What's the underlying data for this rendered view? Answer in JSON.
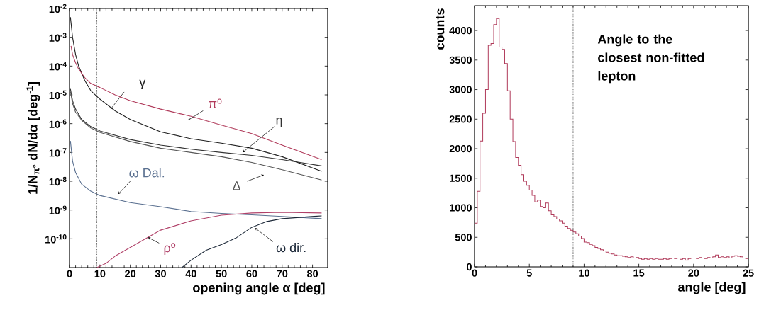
{
  "chart_data": [
    {
      "type": "line",
      "xlabel": "opening angle α [deg]",
      "ylabel": "1/N$_{π°}$ dN/dα [deg$^{-1}$]",
      "log": "y",
      "line_style": "solid",
      "marker": "none",
      "xlim": [
        0,
        85
      ],
      "ylim": [
        1e-11,
        0.01
      ],
      "xticks": [
        0,
        10,
        20,
        30,
        40,
        50,
        60,
        70,
        80
      ],
      "yticks": [
        {
          "value": 0.01,
          "label": "10$^{-2}$"
        },
        {
          "value": 0.001,
          "label": "10$^{-3}$"
        },
        {
          "value": 0.0001,
          "label": "10$^{-4}$"
        },
        {
          "value": 1e-05,
          "label": "10$^{-5}$"
        },
        {
          "value": 1e-06,
          "label": "10$^{-6}$"
        },
        {
          "value": 1e-07,
          "label": "10$^{-7}$"
        },
        {
          "value": 1e-08,
          "label": "10$^{-8}$"
        },
        {
          "value": 1e-09,
          "label": "10$^{-9}$"
        },
        {
          "value": 1e-10,
          "label": "10$^{-10}$"
        }
      ],
      "ref_lines": [
        {
          "axis": "x",
          "value": 9,
          "line_style": "dotted",
          "color": "#222222"
        }
      ],
      "series": [
        {
          "name": "γ",
          "color": "#1e1e1e",
          "x": [
            0.3,
            1,
            2,
            3,
            5,
            7,
            10,
            15,
            20,
            30,
            40,
            50,
            60,
            70,
            83
          ],
          "values": [
            0.005,
            0.001,
            0.00025,
            0.0001,
            3.2e-05,
            1.4e-05,
            7.1e-06,
            2.8e-06,
            1.4e-06,
            5.2e-07,
            3e-07,
            2.1e-07,
            1.4e-07,
            7.1e-08,
            2.2e-08
          ]
        },
        {
          "name": "π$^{o}$",
          "color": "#b03a5a",
          "x": [
            0.5,
            1,
            2,
            3,
            5,
            7,
            10,
            15,
            20,
            30,
            40,
            50,
            60,
            70,
            83
          ],
          "values": [
            0.0005,
            0.00025,
            0.00013,
            7.9e-05,
            4e-05,
            2.5e-05,
            1.8e-05,
            1e-05,
            6.3e-06,
            3.2e-06,
            1.8e-06,
            8.9e-07,
            4.5e-07,
            1.8e-07,
            5.6e-08
          ]
        },
        {
          "name": "η",
          "color": "#333333",
          "x": [
            0.3,
            1,
            2,
            4,
            7,
            10,
            20,
            30,
            40,
            50,
            60,
            70,
            83
          ],
          "values": [
            1.6e-05,
            6.3e-06,
            3.2e-06,
            1.4e-06,
            7.9e-07,
            5.6e-07,
            2.8e-07,
            1.8e-07,
            1.3e-07,
            1e-07,
            7.9e-08,
            5.6e-08,
            3.4e-08
          ]
        },
        {
          "name": "Δ",
          "color": "#555555",
          "x": [
            0.3,
            1,
            2,
            4,
            7,
            10,
            20,
            30,
            40,
            50,
            60,
            70,
            83
          ],
          "values": [
            1.3e-05,
            5e-06,
            2.5e-06,
            1.3e-06,
            7.1e-07,
            5e-07,
            2.4e-07,
            1.4e-07,
            1e-07,
            7.1e-08,
            4.5e-08,
            2.5e-08,
            1.1e-08
          ]
        },
        {
          "name": "ω Dal.",
          "color": "#5a7090",
          "x": [
            0.3,
            1,
            2,
            4,
            7,
            10,
            20,
            30,
            40,
            50,
            60,
            70,
            83
          ],
          "values": [
            2.5e-07,
            5e-08,
            2e-08,
            7.9e-09,
            4.5e-09,
            3.2e-09,
            1.8e-09,
            1.3e-09,
            8.9e-10,
            7.6e-10,
            6.8e-10,
            6e-10,
            5e-10
          ]
        },
        {
          "name": "ρ$^{o}$",
          "color": "#b04068",
          "x": [
            9,
            12,
            15,
            20,
            25,
            30,
            40,
            50,
            60,
            70,
            83
          ],
          "values": [
            1e-11,
            1.4e-11,
            2.5e-11,
            5e-11,
            1e-10,
            2e-10,
            4.2e-10,
            6.6e-10,
            7.9e-10,
            8.3e-10,
            7.9e-10
          ]
        },
        {
          "name": "ω dir.",
          "color": "#1c2838",
          "x": [
            37,
            40,
            45,
            50,
            55,
            60,
            65,
            70,
            83
          ],
          "values": [
            1e-11,
            1.8e-11,
            4e-11,
            6.3e-11,
            1.1e-10,
            2.5e-10,
            4e-10,
            5e-10,
            6.3e-10
          ]
        }
      ]
    },
    {
      "type": "histogram",
      "xlabel": "angle [deg]",
      "ylabel": "counts",
      "color": "#b03a5a",
      "xlim": [
        0,
        25
      ],
      "ylim": [
        0,
        4420
      ],
      "xticks": [
        0,
        5,
        10,
        15,
        20,
        25
      ],
      "yticks": [
        0,
        500,
        1000,
        1500,
        2000,
        2500,
        3000,
        3500,
        4000
      ],
      "ref_lines": [
        {
          "axis": "x",
          "value": 9,
          "line_style": "dotted",
          "color": "#222222"
        }
      ],
      "annotations": [
        "Angle to the closest non-fitted lepton"
      ],
      "bins": [
        0,
        0.25,
        0.5,
        0.75,
        1,
        1.25,
        1.5,
        1.75,
        2,
        2.25,
        2.5,
        2.75,
        3,
        3.25,
        3.5,
        3.75,
        4,
        4.25,
        4.5,
        4.75,
        5,
        5.25,
        5.5,
        5.75,
        6,
        6.25,
        6.5,
        6.75,
        7,
        7.25,
        7.5,
        7.75,
        8,
        8.25,
        8.5,
        8.75,
        9,
        9.25,
        9.5,
        9.75,
        10,
        10.25,
        10.5,
        10.75,
        11,
        11.25,
        11.5,
        11.75,
        12,
        12.25,
        12.5,
        12.75,
        13,
        13.25,
        13.5,
        13.75,
        14,
        14.25,
        14.5,
        14.75,
        15,
        15.25,
        15.5,
        15.75,
        16,
        16.25,
        16.5,
        16.75,
        17,
        17.25,
        17.5,
        17.75,
        18,
        18.25,
        18.5,
        18.75,
        19,
        19.25,
        19.5,
        19.75,
        20,
        20.25,
        20.5,
        20.75,
        21,
        21.25,
        21.5,
        21.75,
        22,
        22.25,
        22.5,
        22.75,
        23,
        23.25,
        23.5,
        23.75,
        24,
        24.25,
        24.5,
        24.75,
        25
      ],
      "values": [
        740,
        1280,
        2130,
        2600,
        3000,
        3750,
        3780,
        4100,
        4200,
        3720,
        3680,
        3440,
        2980,
        2500,
        2120,
        1850,
        1720,
        1560,
        1450,
        1380,
        1300,
        1210,
        1100,
        1130,
        1020,
        1000,
        1080,
        950,
        880,
        850,
        810,
        780,
        740,
        690,
        650,
        620,
        590,
        560,
        520,
        480,
        420,
        410,
        380,
        360,
        330,
        310,
        290,
        270,
        250,
        230,
        220,
        200,
        190,
        190,
        180,
        170,
        160,
        170,
        150,
        160,
        140,
        130,
        140,
        130,
        140,
        130,
        140,
        130,
        130,
        140,
        130,
        140,
        150,
        140,
        150,
        130,
        140,
        110,
        140,
        150,
        150,
        140,
        160,
        150,
        140,
        160,
        150,
        170,
        200,
        160,
        170,
        160,
        170,
        150,
        180,
        190,
        180,
        170,
        150,
        140
      ]
    }
  ]
}
